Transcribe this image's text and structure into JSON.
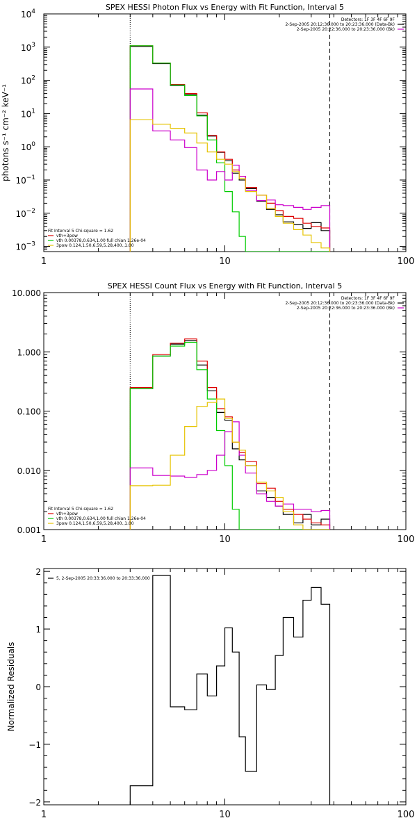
{
  "chart_data": [
    {
      "type": "line",
      "title": "SPEX HESSI Photon Flux vs Energy with Fit Function, Interval 5",
      "xlabel": "",
      "ylabel": "photons s⁻¹ cm⁻² keV⁻¹",
      "xscale": "log",
      "yscale": "log",
      "xlim": [
        1,
        100
      ],
      "ylim": [
        0.0007,
        10000
      ],
      "x_ticks": [
        "1",
        "10",
        "100"
      ],
      "y_ticks": [
        {
          "v": 10000,
          "base": "10",
          "exp": "4"
        },
        {
          "v": 1000,
          "base": "10",
          "exp": "3"
        },
        {
          "v": 100,
          "base": "10",
          "exp": "2"
        },
        {
          "v": 10,
          "base": "10",
          "exp": "1"
        },
        {
          "v": 1,
          "base": "10",
          "exp": "0"
        },
        {
          "v": 0.1,
          "base": "10",
          "exp": "−1"
        },
        {
          "v": 0.01,
          "base": "10",
          "exp": "−2"
        },
        {
          "v": 0.001,
          "base": "10",
          "exp": "−3"
        }
      ],
      "vlines": [
        {
          "x": 3,
          "style": "dotted"
        },
        {
          "x": 38,
          "style": "dashed"
        }
      ],
      "legend_right": [
        {
          "text": "Detectors: 1F 3F 4F 6F 9F",
          "color": ""
        },
        {
          "text": "2-Sep-2005 20:12:36.000 to 20:23:36.000 (Data-Bk)",
          "color": "#000000"
        },
        {
          "text": "2-Sep-2005 20:22:36.000 to 20:23:36.000 (Bk)",
          "color": "#cc00cc"
        }
      ],
      "legend_left": [
        {
          "text": "Fit Interval 5   Chi-square = 1.62",
          "color": ""
        },
        {
          "text": "vth+3pow",
          "color": "#dd0000"
        },
        {
          "text": "vth 0.00378,0.634,1.00  full chian 1.26e-04",
          "color": "#00cc00"
        },
        {
          "text": "3pow 0.124,1.50,6.59,5.28,400.,1.00",
          "color": "#e6c300"
        }
      ],
      "edges": [
        3,
        4,
        5,
        6,
        7,
        8,
        9,
        10,
        11,
        12,
        13,
        15,
        17,
        19,
        21,
        24,
        27,
        30,
        34,
        38
      ],
      "series": [
        {
          "color": "#000000",
          "values": [
            1050,
            320,
            70,
            38,
            9,
            2.1,
            0.68,
            0.38,
            0.16,
            0.1,
            0.055,
            0.023,
            0.013,
            0.009,
            0.0055,
            0.0045,
            0.0035,
            0.0052,
            0.003
          ]
        },
        {
          "color": "#dd0000",
          "values": [
            1100,
            330,
            75,
            40,
            10.5,
            2.2,
            0.7,
            0.42,
            0.2,
            0.13,
            0.06,
            0.035,
            0.02,
            0.012,
            0.008,
            0.007,
            0.005,
            0.004,
            0.0036
          ]
        },
        {
          "color": "#00cc00",
          "values": [
            1100,
            330,
            72,
            35,
            8.5,
            1.6,
            0.33,
            0.045,
            0.011,
            0.002,
            0.0007,
            0.0007,
            0.0007,
            0.0007,
            0.0007,
            0.0007,
            0.0007,
            0.0007,
            0.0007
          ]
        },
        {
          "color": "#cc00cc",
          "values": [
            55,
            3,
            1.6,
            0.95,
            0.2,
            0.1,
            0.18,
            0.1,
            0.28,
            0.13,
            0.048,
            0.024,
            0.025,
            0.018,
            0.017,
            0.015,
            0.013,
            0.015,
            0.017
          ]
        },
        {
          "color": "#e6c300",
          "values": [
            6.5,
            4.8,
            3.6,
            2.6,
            1.3,
            0.7,
            0.42,
            0.3,
            0.18,
            0.11,
            0.045,
            0.035,
            0.014,
            0.008,
            0.005,
            0.0032,
            0.0022,
            0.0013,
            0.0009
          ]
        }
      ]
    },
    {
      "type": "line",
      "title": "SPEX HESSI Count Flux vs Energy with Fit Function, Interval 5",
      "xlabel": "",
      "ylabel": "",
      "xscale": "log",
      "yscale": "log",
      "xlim": [
        1,
        100
      ],
      "ylim": [
        0.001,
        10
      ],
      "x_ticks": [
        "1",
        "10",
        "100"
      ],
      "y_ticks": [
        {
          "v": 10,
          "label": "10.000"
        },
        {
          "v": 1,
          "label": "1.000"
        },
        {
          "v": 0.1,
          "label": "0.100"
        },
        {
          "v": 0.01,
          "label": "0.010"
        },
        {
          "v": 0.001,
          "label": "0.001"
        }
      ],
      "vlines": [
        {
          "x": 3,
          "style": "dotted"
        },
        {
          "x": 38,
          "style": "dashed"
        }
      ],
      "legend_right": [
        {
          "text": "Detectors: 1F 3F 4F 6F 9F",
          "color": ""
        },
        {
          "text": "2-Sep-2005 20:12:36.000 to 20:23:36.000 (Data-Bk)",
          "color": "#000000"
        },
        {
          "text": "2-Sep-2005 20:22:36.000 to 20:23:36.000 (Bk)",
          "color": "#cc00cc"
        }
      ],
      "legend_left": [
        {
          "text": "Fit Interval 5   Chi-square = 1.62",
          "color": ""
        },
        {
          "text": "vth+3pow",
          "color": "#dd0000"
        },
        {
          "text": "vth 0.00378,0.634,1.00  full chian 1.26e-04",
          "color": "#00cc00"
        },
        {
          "text": "3pow 0.124,1.50,6.59,5.28,400.,1.00",
          "color": "#e6c300"
        }
      ],
      "edges": [
        3,
        4,
        5,
        6,
        7,
        8,
        9,
        10,
        11,
        12,
        13,
        15,
        17,
        19,
        21,
        24,
        27,
        30,
        34,
        38
      ],
      "series": [
        {
          "color": "#000000",
          "values": [
            0.24,
            0.85,
            1.35,
            1.55,
            0.6,
            0.22,
            0.095,
            0.07,
            0.023,
            0.015,
            0.012,
            0.0045,
            0.0035,
            0.0025,
            0.0018,
            0.0013,
            0.0018,
            0.0012,
            0.0015
          ]
        },
        {
          "color": "#dd0000",
          "values": [
            0.25,
            0.9,
            1.4,
            1.65,
            0.7,
            0.25,
            0.11,
            0.08,
            0.03,
            0.02,
            0.014,
            0.006,
            0.005,
            0.003,
            0.0022,
            0.0018,
            0.0015,
            0.0013,
            0.0012
          ]
        },
        {
          "color": "#00cc00",
          "values": [
            0.24,
            0.85,
            1.25,
            1.45,
            0.5,
            0.16,
            0.047,
            0.012,
            0.0022,
            0.001,
            0.001,
            0.001,
            0.001,
            0.001,
            0.001,
            0.001,
            0.001,
            0.001,
            0.001
          ]
        },
        {
          "color": "#cc00cc",
          "values": [
            0.011,
            0.0082,
            0.008,
            0.0076,
            0.0085,
            0.01,
            0.018,
            0.045,
            0.066,
            0.018,
            0.009,
            0.004,
            0.003,
            0.0025,
            0.0027,
            0.0022,
            0.0022,
            0.002,
            0.0021
          ]
        },
        {
          "color": "#e6c300",
          "values": [
            0.0055,
            0.0056,
            0.018,
            0.055,
            0.12,
            0.14,
            0.16,
            0.075,
            0.03,
            0.022,
            0.012,
            0.0063,
            0.0045,
            0.0035,
            0.002,
            0.0012,
            0.001,
            0.001,
            0.001
          ]
        }
      ]
    },
    {
      "type": "line",
      "title": "",
      "xlabel": "",
      "ylabel": "Normalized Residuals",
      "xscale": "log",
      "yscale": "linear",
      "xlim": [
        1,
        100
      ],
      "ylim": [
        -2.05,
        2.05
      ],
      "x_ticks": [
        "1",
        "10",
        "100"
      ],
      "y_ticks": [
        {
          "v": 2,
          "label": "2"
        },
        {
          "v": 1,
          "label": "1"
        },
        {
          "v": 0,
          "label": "0"
        },
        {
          "v": -1,
          "label": "−1"
        },
        {
          "v": -2,
          "label": "−2"
        }
      ],
      "vlines": [],
      "legend_right": [],
      "legend_left": [
        {
          "text": "5, 2-Sep-2005 20:33:36.000 to 20:33:36.000",
          "color": "#000000"
        }
      ],
      "edges": [
        3,
        4,
        5,
        6,
        7,
        8,
        9,
        10,
        11,
        12,
        13,
        15,
        17,
        19,
        21,
        24,
        27,
        30,
        34,
        38
      ],
      "series": [
        {
          "color": "#000000",
          "values": [
            -1.72,
            1.93,
            -0.35,
            -0.4,
            0.22,
            -0.16,
            0.36,
            1.02,
            0.6,
            -0.87,
            -1.47,
            0.03,
            -0.05,
            0.54,
            1.2,
            0.86,
            1.5,
            1.72,
            1.43
          ]
        }
      ]
    }
  ]
}
